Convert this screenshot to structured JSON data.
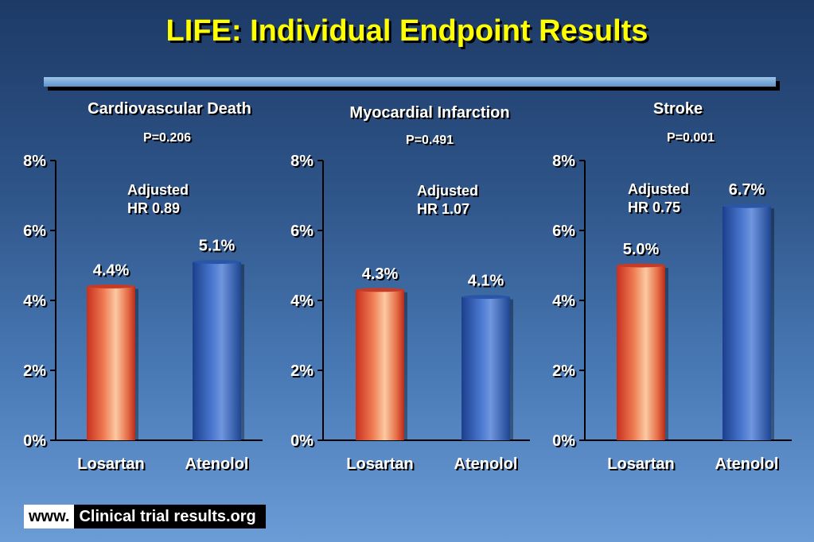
{
  "title": "LIFE: Individual Endpoint Results",
  "footer": {
    "prefix": "www.",
    "site": "Clinical trial results.org"
  },
  "colors": {
    "title": "#ffff00",
    "losartan": "#e05a3c",
    "atenolol": "#2f5db8"
  },
  "chart_data": [
    {
      "type": "bar",
      "title": "Cardiovascular Death",
      "p_value": "P=0.206",
      "annotation": [
        "Adjusted",
        "HR 0.89"
      ],
      "categories": [
        "Losartan",
        "Atenolol"
      ],
      "values": [
        4.4,
        5.1
      ],
      "value_labels": [
        "4.4%",
        "5.1%"
      ],
      "ylim": [
        0,
        8
      ],
      "yticks": [
        "0%",
        "2%",
        "4%",
        "6%",
        "8%"
      ]
    },
    {
      "type": "bar",
      "title": "Myocardial Infarction",
      "p_value": "P=0.491",
      "annotation": [
        "Adjusted",
        "HR 1.07"
      ],
      "categories": [
        "Losartan",
        "Atenolol"
      ],
      "values": [
        4.3,
        4.1
      ],
      "value_labels": [
        "4.3%",
        "4.1%"
      ],
      "ylim": [
        0,
        8
      ],
      "yticks": [
        "0%",
        "2%",
        "4%",
        "6%",
        "8%"
      ]
    },
    {
      "type": "bar",
      "title": "Stroke",
      "p_value": "P=0.001",
      "annotation": [
        "Adjusted",
        "HR 0.75"
      ],
      "categories": [
        "Losartan",
        "Atenolol"
      ],
      "values": [
        5.0,
        6.7
      ],
      "value_labels": [
        "5.0%",
        "6.7%"
      ],
      "ylim": [
        0,
        8
      ],
      "yticks": [
        "0%",
        "2%",
        "4%",
        "6%",
        "8%"
      ]
    }
  ]
}
